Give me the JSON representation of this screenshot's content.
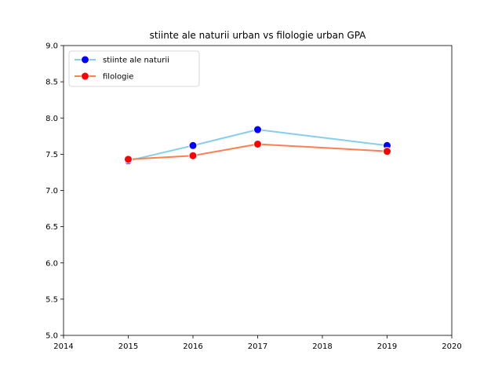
{
  "chart_data": {
    "type": "line",
    "title": "stiinte ale naturii urban vs filologie urban GPA",
    "xlabel": "",
    "ylabel": "",
    "xlim": [
      2014,
      2020
    ],
    "ylim": [
      5.0,
      9.0
    ],
    "xticks": [
      "2014",
      "2015",
      "2016",
      "2017",
      "2018",
      "2019",
      "2020"
    ],
    "yticks": [
      "5.0",
      "5.5",
      "6.0",
      "6.5",
      "7.0",
      "7.5",
      "8.0",
      "8.5",
      "9.0"
    ],
    "grid": false,
    "legend_position": "top-left",
    "series": [
      {
        "name": "stiinte ale naturii",
        "line_color": "#87ceeb",
        "marker_color": "#0000ff",
        "points": [
          {
            "x": 2015,
            "y": 7.41
          },
          {
            "x": 2016,
            "y": 7.62
          },
          {
            "x": 2017,
            "y": 7.84
          },
          {
            "x": 2019,
            "y": 7.62
          }
        ]
      },
      {
        "name": "filologie",
        "line_color": "#ff7f50",
        "marker_color": "#ff0000",
        "points": [
          {
            "x": 2015,
            "y": 7.43
          },
          {
            "x": 2016,
            "y": 7.48
          },
          {
            "x": 2017,
            "y": 7.64
          },
          {
            "x": 2019,
            "y": 7.54
          }
        ]
      }
    ]
  }
}
